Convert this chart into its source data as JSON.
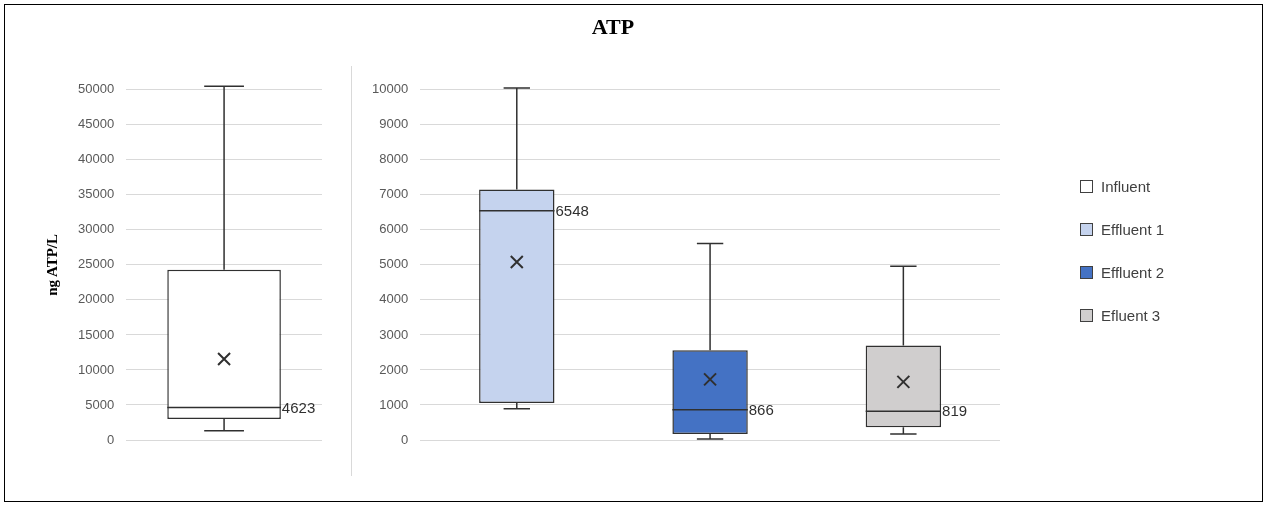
{
  "chart_data": [
    {
      "type": "box",
      "ylabel": "ng ATP/L",
      "categories": [
        null
      ],
      "ylim": [
        0,
        50000
      ],
      "yticks": [
        0,
        5000,
        10000,
        15000,
        20000,
        25000,
        30000,
        35000,
        40000,
        45000,
        50000
      ],
      "grid": "y",
      "series": [
        {
          "name": "Influent",
          "color": "#ffffff",
          "boxes": [
            {
              "low": 1330,
              "q1": 3000,
              "median": 4623,
              "q3": 24300,
              "high": 50500,
              "mean": 11570
            }
          ]
        }
      ],
      "annotations": [
        "4623"
      ]
    },
    {
      "type": "box",
      "title": "ATP",
      "categories": [
        null,
        null,
        null
      ],
      "ylim": [
        0,
        10000
      ],
      "yticks": [
        0,
        1000,
        2000,
        3000,
        4000,
        5000,
        6000,
        7000,
        8000,
        9000,
        10000
      ],
      "grid": "y",
      "legend": "right",
      "series": [
        {
          "name": "Effluent 1",
          "color": "#c5d3ee",
          "boxes": [
            {
              "low": 890,
              "q1": 1055,
              "median": 6548,
              "q3": 7150,
              "high": 10050,
              "mean": 5085
            },
            null,
            null
          ]
        },
        {
          "name": "Effluent 2",
          "color": "#4472c4",
          "boxes": [
            null,
            {
              "low": 30,
              "q1": 170,
              "median": 866,
              "q3": 2560,
              "high": 5610,
              "mean": 1730
            },
            null
          ]
        },
        {
          "name": "Efluent 3",
          "color": "#d0cece",
          "boxes": [
            null,
            null,
            {
              "low": 170,
              "q1": 365,
              "median": 819,
              "q3": 2700,
              "high": 4960,
              "mean": 1660
            }
          ]
        }
      ],
      "annotations": [
        "6548",
        "866",
        "819"
      ]
    }
  ]
}
